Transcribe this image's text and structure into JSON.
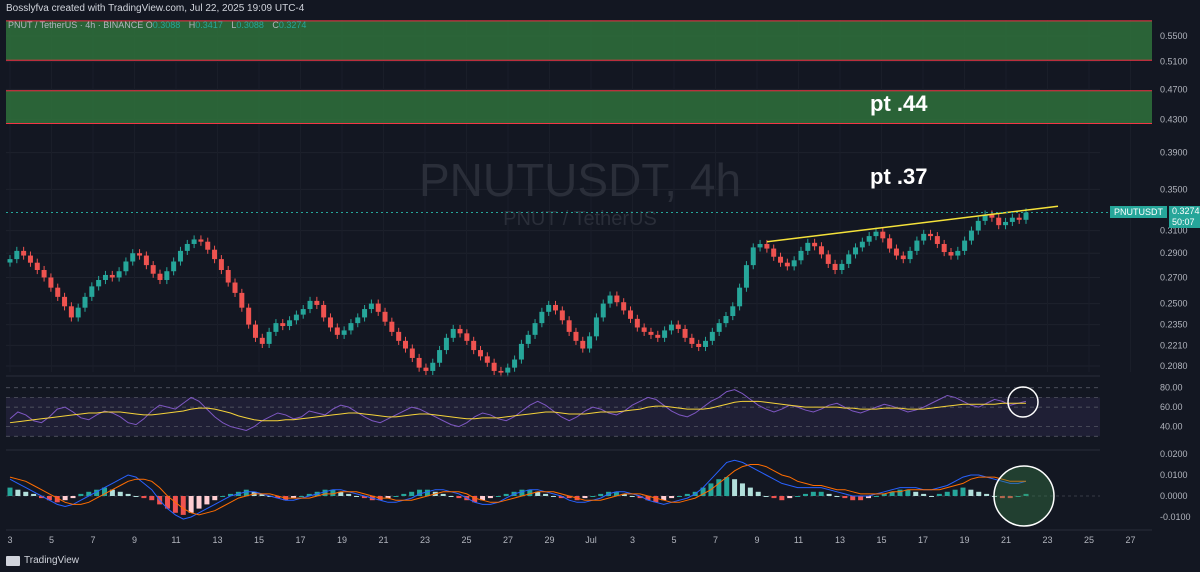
{
  "header": {
    "credit": "Bosslyfva created with TradingView.com, Jul 22, 2025 19:09 UTC-4"
  },
  "legend": {
    "pair": "PNUT / TetherUS · 4h · BINANCE",
    "o_label": "O",
    "o": "0.3088",
    "h_label": "H",
    "h": "0.3417",
    "l_label": "L",
    "l": "0.3088",
    "c_label": "C",
    "c": "0.3274"
  },
  "watermark": {
    "title": "PNUTUSDT, 4h",
    "subtitle": "PNUT / TetherUS"
  },
  "annotations": {
    "pt1": "pt .44",
    "pt2": "pt .37"
  },
  "price_tag": {
    "symbol": "PNUTUSDT",
    "price": "0.3274",
    "countdown": "50:07"
  },
  "colors": {
    "up": "#26a69a",
    "down": "#ef5350",
    "zone_fill": "#2e6b3a",
    "zone_border": "#f23645",
    "trendline": "#f5e23a",
    "rsi": "#7e57c2",
    "rsi_ma": "#f5d33a",
    "macd": "#2962ff",
    "signal": "#ff6d00"
  },
  "footer": {
    "brand": "TradingView"
  },
  "chart_data": {
    "type": "candlestick",
    "price_axis_labels": [
      "0.5500",
      "0.5100",
      "0.4700",
      "0.4300",
      "0.3900",
      "0.3500",
      "0.3100",
      "0.2900",
      "0.2700",
      "0.2500",
      "0.2350",
      "0.2210",
      "0.2080"
    ],
    "price_axis_log_values": [
      0.55,
      0.51,
      0.47,
      0.43,
      0.39,
      0.35,
      0.31,
      0.29,
      0.27,
      0.25,
      0.235,
      0.221,
      0.208
    ],
    "x_tick_labels": [
      "3",
      "5",
      "7",
      "9",
      "11",
      "13",
      "15",
      "17",
      "19",
      "21",
      "23",
      "25",
      "27",
      "29",
      "Jul",
      "3",
      "5",
      "7",
      "9",
      "11",
      "13",
      "15",
      "17",
      "19",
      "21",
      "23",
      "25",
      "27"
    ],
    "zones": [
      {
        "from": 0.512,
        "to": 0.575
      },
      {
        "from": 0.425,
        "to": 0.468
      }
    ],
    "trendline": {
      "from_price": 0.3,
      "to_price": 0.333
    },
    "close_series": [
      0.285,
      0.292,
      0.288,
      0.282,
      0.276,
      0.27,
      0.262,
      0.255,
      0.248,
      0.24,
      0.247,
      0.255,
      0.263,
      0.268,
      0.272,
      0.27,
      0.275,
      0.283,
      0.29,
      0.288,
      0.28,
      0.273,
      0.268,
      0.275,
      0.283,
      0.292,
      0.298,
      0.302,
      0.3,
      0.293,
      0.285,
      0.276,
      0.266,
      0.258,
      0.247,
      0.235,
      0.226,
      0.222,
      0.23,
      0.236,
      0.234,
      0.238,
      0.242,
      0.246,
      0.252,
      0.249,
      0.24,
      0.233,
      0.228,
      0.231,
      0.236,
      0.24,
      0.246,
      0.25,
      0.244,
      0.237,
      0.23,
      0.224,
      0.219,
      0.213,
      0.207,
      0.205,
      0.21,
      0.218,
      0.226,
      0.232,
      0.229,
      0.224,
      0.218,
      0.214,
      0.21,
      0.205,
      0.204,
      0.207,
      0.212,
      0.222,
      0.228,
      0.236,
      0.244,
      0.249,
      0.245,
      0.238,
      0.23,
      0.224,
      0.219,
      0.227,
      0.24,
      0.25,
      0.256,
      0.251,
      0.245,
      0.239,
      0.233,
      0.23,
      0.228,
      0.226,
      0.231,
      0.235,
      0.232,
      0.226,
      0.222,
      0.22,
      0.224,
      0.23,
      0.236,
      0.241,
      0.248,
      0.262,
      0.28,
      0.295,
      0.298,
      0.294,
      0.287,
      0.282,
      0.279,
      0.284,
      0.292,
      0.299,
      0.296,
      0.289,
      0.281,
      0.276,
      0.281,
      0.289,
      0.295,
      0.3,
      0.305,
      0.309,
      0.303,
      0.294,
      0.288,
      0.285,
      0.292,
      0.301,
      0.307,
      0.305,
      0.298,
      0.291,
      0.288,
      0.292,
      0.301,
      0.31,
      0.319,
      0.325,
      0.322,
      0.315,
      0.318,
      0.322,
      0.32,
      0.327
    ],
    "rsi_axis_labels": [
      "80.00",
      "60.00",
      "40.00"
    ],
    "rsi_levels": [
      80,
      70,
      60,
      40,
      30
    ],
    "rsi_series": [
      48,
      55,
      52,
      46,
      44,
      50,
      58,
      60,
      55,
      49,
      47,
      52,
      56,
      54,
      50,
      44,
      42,
      48,
      56,
      62,
      60,
      58,
      64,
      70,
      66,
      58,
      50,
      44,
      40,
      38,
      36,
      40,
      46,
      50,
      54,
      52,
      48,
      50,
      56,
      54,
      52,
      58,
      62,
      60,
      55,
      50,
      46,
      44,
      48,
      52,
      56,
      60,
      58,
      54,
      50,
      46,
      42,
      40,
      44,
      50,
      54,
      52,
      48,
      46,
      50,
      56,
      62,
      66,
      62,
      56,
      50,
      46,
      50,
      56,
      60,
      58,
      54,
      52,
      56,
      62,
      66,
      70,
      68,
      62,
      56,
      52,
      50,
      54,
      60,
      66,
      70,
      76,
      78,
      74,
      68,
      62,
      58,
      55,
      58,
      62,
      60,
      57,
      55,
      58,
      62,
      64,
      60,
      56,
      54,
      57,
      60,
      63,
      61,
      58,
      55,
      57,
      60,
      64,
      68,
      72,
      70,
      66,
      62,
      60,
      64,
      68,
      66,
      62,
      64,
      66
    ],
    "rsi_ma_series": [
      44,
      45,
      46,
      47,
      48,
      49,
      50,
      51,
      52,
      53,
      54,
      54,
      55,
      55,
      55,
      54,
      53,
      52,
      52,
      53,
      54,
      55,
      56,
      58,
      59,
      59,
      58,
      56,
      54,
      51,
      49,
      47,
      46,
      46,
      46,
      47,
      47,
      48,
      49,
      50,
      51,
      52,
      53,
      54,
      54,
      53,
      52,
      51,
      50,
      50,
      51,
      52,
      53,
      53,
      52,
      51,
      50,
      49,
      48,
      48,
      49,
      49,
      49,
      50,
      51,
      52,
      53,
      54,
      55,
      55,
      54,
      53,
      53,
      53,
      54,
      55,
      55,
      55,
      56,
      57,
      58,
      60,
      61,
      61,
      60,
      59,
      58,
      58,
      58,
      59,
      61,
      63,
      65,
      66,
      66,
      66,
      65,
      64,
      63,
      62,
      61,
      60,
      60,
      60,
      60,
      60,
      59,
      59,
      58,
      58,
      58,
      59,
      59,
      59,
      58,
      58,
      58,
      59,
      60,
      61,
      62,
      63,
      63,
      63,
      63,
      63,
      64,
      64,
      64,
      64
    ],
    "macd_axis_labels": [
      "0.0200",
      "0.0100",
      "0.0000",
      "-0.0100"
    ],
    "macd_histogram": [
      0.004,
      0.003,
      0.002,
      0.001,
      -0.001,
      -0.002,
      -0.003,
      -0.002,
      -0.001,
      0.001,
      0.002,
      0.003,
      0.004,
      0.003,
      0.002,
      0.001,
      0.0,
      -0.001,
      -0.002,
      -0.004,
      -0.006,
      -0.008,
      -0.009,
      -0.008,
      -0.006,
      -0.004,
      -0.002,
      0.0,
      0.001,
      0.002,
      0.003,
      0.002,
      0.001,
      0.0,
      -0.001,
      -0.002,
      -0.001,
      0.0,
      0.001,
      0.002,
      0.003,
      0.003,
      0.002,
      0.001,
      0.0,
      -0.001,
      -0.002,
      -0.002,
      -0.001,
      0.0,
      0.001,
      0.002,
      0.003,
      0.003,
      0.002,
      0.001,
      0.0,
      -0.001,
      -0.002,
      -0.003,
      -0.002,
      -0.001,
      0.0,
      0.001,
      0.002,
      0.003,
      0.003,
      0.002,
      0.001,
      0.0,
      -0.001,
      -0.001,
      -0.002,
      -0.001,
      0.0,
      0.001,
      0.002,
      0.002,
      0.001,
      0.0,
      -0.001,
      -0.002,
      -0.003,
      -0.002,
      -0.001,
      0.0,
      0.001,
      0.002,
      0.004,
      0.006,
      0.008,
      0.009,
      0.008,
      0.006,
      0.004,
      0.002,
      0.0,
      -0.001,
      -0.002,
      -0.001,
      0.0,
      0.001,
      0.002,
      0.002,
      0.001,
      0.0,
      -0.001,
      -0.002,
      -0.002,
      -0.001,
      0.0,
      0.001,
      0.002,
      0.003,
      0.003,
      0.002,
      0.001,
      0.0,
      0.001,
      0.002,
      0.003,
      0.004,
      0.003,
      0.002,
      0.001,
      0.0,
      -0.001,
      -0.001,
      0.0,
      0.001
    ],
    "macd_line": [
      0.008,
      0.006,
      0.004,
      0.002,
      0.0,
      -0.002,
      -0.004,
      -0.005,
      -0.004,
      -0.002,
      0.0,
      0.002,
      0.004,
      0.006,
      0.008,
      0.01,
      0.009,
      0.006,
      0.003,
      -0.002,
      -0.006,
      -0.009,
      -0.011,
      -0.01,
      -0.008,
      -0.006,
      -0.004,
      -0.002,
      0.0,
      0.001,
      0.002,
      0.002,
      0.001,
      0.0,
      -0.001,
      -0.002,
      -0.002,
      -0.001,
      0.0,
      0.001,
      0.002,
      0.003,
      0.003,
      0.002,
      0.001,
      0.0,
      -0.001,
      -0.002,
      -0.003,
      -0.003,
      -0.002,
      -0.001,
      0.001,
      0.002,
      0.003,
      0.003,
      0.002,
      0.001,
      -0.001,
      -0.003,
      -0.004,
      -0.004,
      -0.003,
      -0.001,
      0.001,
      0.002,
      0.003,
      0.003,
      0.002,
      0.001,
      0.0,
      -0.002,
      -0.003,
      -0.003,
      -0.002,
      -0.001,
      0.001,
      0.002,
      0.002,
      0.001,
      0.0,
      -0.002,
      -0.003,
      -0.004,
      -0.003,
      -0.002,
      -0.001,
      0.001,
      0.004,
      0.008,
      0.012,
      0.016,
      0.017,
      0.016,
      0.014,
      0.012,
      0.01,
      0.008,
      0.006,
      0.005,
      0.004,
      0.004,
      0.004,
      0.004,
      0.003,
      0.002,
      0.001,
      0.0,
      0.0,
      0.0,
      0.001,
      0.002,
      0.003,
      0.004,
      0.004,
      0.004,
      0.003,
      0.003,
      0.004,
      0.005,
      0.007,
      0.009,
      0.01,
      0.01,
      0.009,
      0.008,
      0.007,
      0.006,
      0.006,
      0.007
    ],
    "signal_line": [
      0.009,
      0.008,
      0.007,
      0.005,
      0.003,
      0.001,
      -0.001,
      -0.003,
      -0.004,
      -0.004,
      -0.003,
      -0.001,
      0.001,
      0.003,
      0.005,
      0.007,
      0.008,
      0.008,
      0.007,
      0.004,
      0.0,
      -0.003,
      -0.006,
      -0.008,
      -0.009,
      -0.008,
      -0.007,
      -0.005,
      -0.003,
      -0.001,
      0.0,
      0.001,
      0.001,
      0.001,
      0.0,
      -0.001,
      -0.001,
      -0.001,
      -0.001,
      0.0,
      0.001,
      0.001,
      0.002,
      0.002,
      0.002,
      0.001,
      0.0,
      -0.001,
      -0.001,
      -0.002,
      -0.002,
      -0.002,
      -0.001,
      0.0,
      0.001,
      0.002,
      0.002,
      0.002,
      0.001,
      -0.001,
      -0.002,
      -0.003,
      -0.003,
      -0.002,
      -0.001,
      0.0,
      0.001,
      0.002,
      0.002,
      0.002,
      0.001,
      0.0,
      -0.001,
      -0.002,
      -0.002,
      -0.002,
      -0.001,
      0.0,
      0.001,
      0.001,
      0.001,
      0.0,
      -0.001,
      -0.002,
      -0.003,
      -0.003,
      -0.002,
      -0.001,
      0.001,
      0.003,
      0.006,
      0.009,
      0.012,
      0.014,
      0.015,
      0.015,
      0.014,
      0.012,
      0.01,
      0.009,
      0.007,
      0.006,
      0.005,
      0.005,
      0.004,
      0.003,
      0.003,
      0.002,
      0.001,
      0.001,
      0.001,
      0.001,
      0.002,
      0.002,
      0.003,
      0.003,
      0.003,
      0.003,
      0.003,
      0.004,
      0.005,
      0.006,
      0.008,
      0.009,
      0.009,
      0.009,
      0.008,
      0.007,
      0.007,
      0.007
    ]
  }
}
